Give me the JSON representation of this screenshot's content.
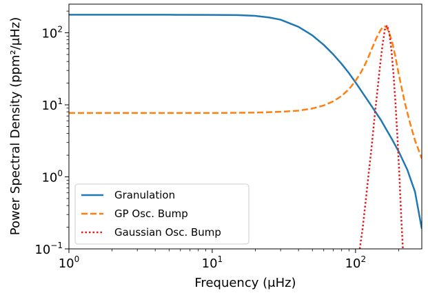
{
  "chart_data": {
    "type": "line",
    "xscale": "log",
    "yscale": "log",
    "xlim": [
      1,
      290
    ],
    "ylim": [
      0.1,
      250
    ],
    "xlabel": "Frequency (μHz)",
    "ylabel": "Power Spectral Density (ppm²/μHz)",
    "grid": false,
    "legend_position": "lower-left",
    "x_ticks": [
      {
        "value": 1,
        "base": "10",
        "exp": "0"
      },
      {
        "value": 10,
        "base": "10",
        "exp": "1"
      },
      {
        "value": 100,
        "base": "10",
        "exp": "2"
      }
    ],
    "y_ticks": [
      {
        "value": 0.1,
        "base": "10",
        "exp": "−1"
      },
      {
        "value": 1,
        "base": "10",
        "exp": "0"
      },
      {
        "value": 10,
        "base": "10",
        "exp": "1"
      },
      {
        "value": 100,
        "base": "10",
        "exp": "2"
      }
    ],
    "series": [
      {
        "name": "Granulation",
        "color": "#1f77b4",
        "style": "solid",
        "x": [
          1,
          2,
          5,
          10,
          15,
          20,
          25,
          30,
          40,
          50,
          60,
          70,
          80,
          90,
          100,
          120,
          150,
          180,
          200,
          230,
          260,
          290
        ],
        "y": [
          178,
          178,
          178,
          177,
          176,
          172,
          163,
          152,
          121,
          92,
          68,
          50,
          37,
          27.5,
          20.5,
          12,
          6.2,
          3.3,
          2.25,
          1.25,
          0.62,
          0.19
        ]
      },
      {
        "name": "GP Osc. Bump",
        "color": "#ff7f0e",
        "style": "dashed",
        "x": [
          1,
          2,
          5,
          10,
          20,
          30,
          40,
          50,
          60,
          70,
          80,
          90,
          100,
          110,
          120,
          130,
          140,
          150,
          155,
          160,
          165,
          170,
          180,
          190,
          200,
          220,
          240,
          260,
          290
        ],
        "y": [
          7.7,
          7.7,
          7.7,
          7.7,
          7.8,
          8.0,
          8.3,
          8.9,
          9.8,
          11.2,
          13.3,
          16.5,
          21.5,
          29,
          41,
          60,
          85,
          110,
          119,
          123,
          118,
          105,
          75,
          46,
          27,
          11,
          5.6,
          3.2,
          1.8
        ]
      },
      {
        "name": "Gaussian Osc. Bump",
        "color": "#e31a1c",
        "style": "dotted",
        "x": [
          107,
          112,
          118,
          124,
          130,
          136,
          142,
          148,
          154,
          160,
          166,
          172,
          178,
          184,
          190,
          196,
          202,
          208,
          214
        ],
        "y": [
          0.1,
          0.19,
          0.48,
          1.2,
          2.8,
          7,
          15.5,
          34,
          66,
          110,
          127,
          100,
          58,
          27,
          10.5,
          3.6,
          1.1,
          0.3,
          0.1
        ]
      }
    ]
  }
}
